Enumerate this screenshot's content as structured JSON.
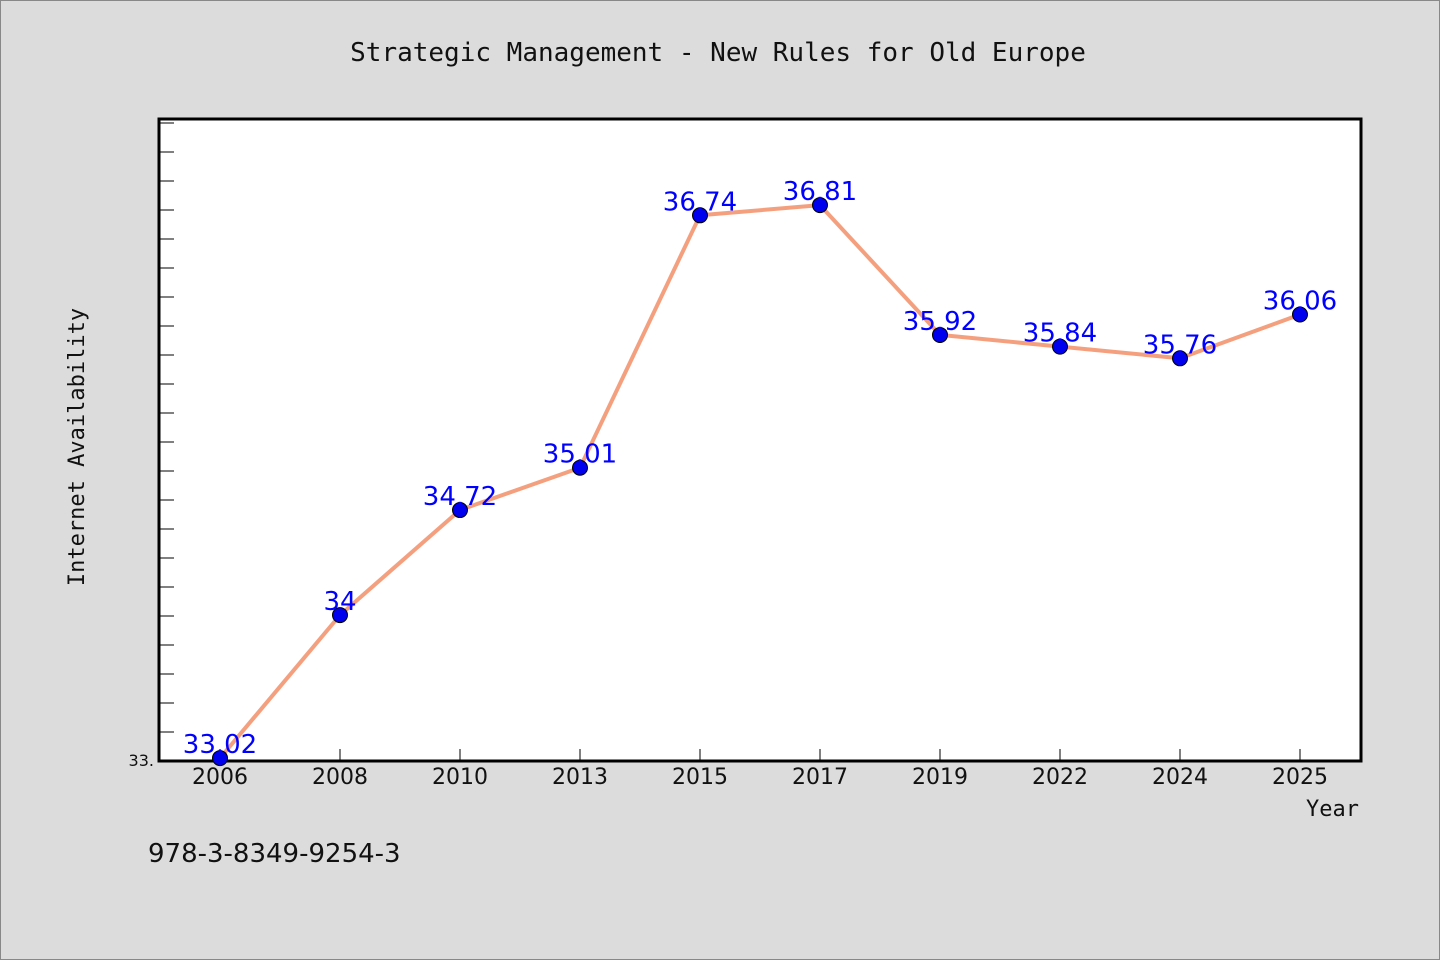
{
  "chart_data": {
    "type": "line",
    "title": "Strategic Management - New Rules for Old Europe",
    "xlabel": "Year",
    "ylabel": "Internet Availability",
    "categories": [
      "2006",
      "2008",
      "2010",
      "2013",
      "2015",
      "2017",
      "2019",
      "2022",
      "2024",
      "2025"
    ],
    "series": [
      {
        "values": [
          33.02,
          34,
          34.72,
          35.01,
          36.74,
          36.81,
          35.92,
          35.84,
          35.76,
          36.06
        ],
        "labels": [
          "33.02",
          "34",
          "34.72",
          "35.01",
          "36.74",
          "36.81",
          "35.92",
          "35.84",
          "35.76",
          "36.06"
        ]
      }
    ],
    "y_tick_label": "33.",
    "ylim": [
      33.0,
      37.4
    ],
    "grid": false,
    "line_color": "#f4a07f",
    "marker_color": "#0000ee",
    "label_color": "#0000ff"
  },
  "footer_text": "978-3-8349-9254-3"
}
